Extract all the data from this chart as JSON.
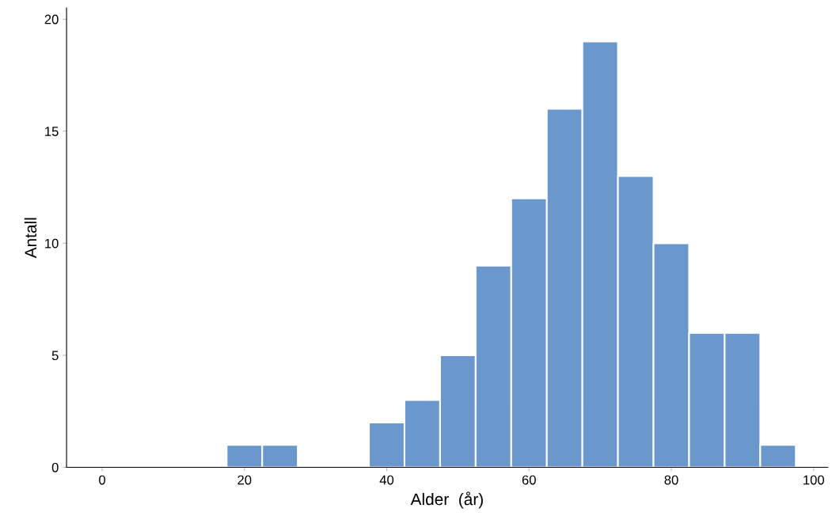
{
  "chart_data": {
    "type": "histogram",
    "xlabel": "Alder  (år)",
    "ylabel": "Antall",
    "bins": [
      17.5,
      22.5,
      27.5,
      32.5,
      37.5,
      42.5,
      47.5,
      52.5,
      57.5,
      62.5,
      67.5,
      72.5,
      77.5,
      82.5,
      87.5,
      92.5,
      97.5
    ],
    "values": [
      1,
      1,
      0,
      0,
      2,
      3,
      5,
      9,
      12,
      16,
      19,
      13,
      10,
      6,
      6,
      1
    ],
    "color": "#6b98cc",
    "xlim": [
      -5,
      102
    ],
    "xticks": [
      0,
      20,
      40,
      60,
      80,
      100
    ],
    "ylim": [
      0,
      20.5
    ],
    "yticks": [
      0,
      5,
      10,
      15,
      20
    ],
    "grid": false
  }
}
